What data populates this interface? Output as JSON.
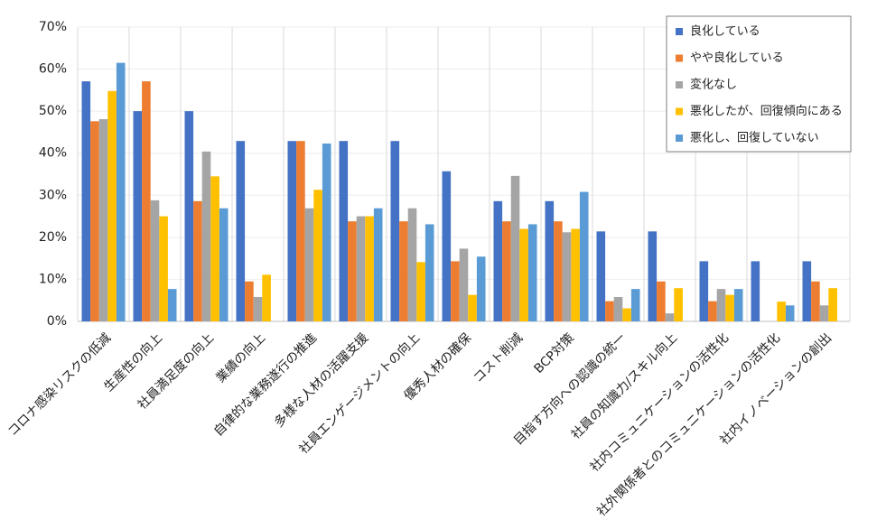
{
  "chart_data": {
    "type": "bar",
    "categories": [
      "コロナ感染リスクの低減",
      "生産性の向上",
      "社員満足度の向上",
      "業績の向上",
      "自律的な業務遂行の推進",
      "多様な人材の活躍支援",
      "社員エンゲージメントの向上",
      "優秀人材の確保",
      "コスト削減",
      "BCP対策",
      "目指す方向への認識の統一",
      "社員の知識力/スキル向上",
      "社内コミュニケーションの活性化",
      "社外関係者とのコミュニケーションの活性化",
      "社内イノベーションの創出"
    ],
    "series": [
      {
        "name": "良化している",
        "color": "#4472c4",
        "values": [
          57.1,
          50,
          50,
          42.9,
          42.9,
          42.9,
          42.9,
          35.7,
          28.6,
          28.6,
          21.4,
          21.4,
          14.3,
          14.3,
          14.3
        ]
      },
      {
        "name": "やや良化している",
        "color": "#ed7d31",
        "values": [
          47.6,
          57.1,
          28.6,
          9.5,
          42.9,
          23.8,
          23.8,
          14.3,
          23.8,
          23.8,
          4.8,
          9.5,
          4.8,
          0,
          9.5
        ]
      },
      {
        "name": "変化なし",
        "color": "#a5a5a5",
        "values": [
          48.1,
          28.8,
          40.4,
          5.8,
          26.9,
          25,
          26.9,
          17.3,
          34.6,
          21.2,
          5.8,
          1.9,
          7.7,
          0,
          3.8
        ]
      },
      {
        "name": "悪化したが、回復傾向にある",
        "color": "#ffc000",
        "values": [
          54.8,
          25,
          34.5,
          11.1,
          31.3,
          25,
          14.1,
          6.3,
          22,
          22,
          3.1,
          7.9,
          6.3,
          4.7,
          7.9
        ]
      },
      {
        "name": "悪化し、回復していない",
        "color": "#5b9bd5",
        "values": [
          61.5,
          7.7,
          26.9,
          0,
          42.3,
          26.9,
          23.1,
          15.4,
          23.1,
          30.8,
          7.7,
          0,
          7.7,
          3.8,
          0
        ]
      }
    ],
    "ylim": [
      0,
      70
    ],
    "yticks": [
      {
        "value": 0,
        "label": "0%"
      },
      {
        "value": 10,
        "label": "10%"
      },
      {
        "value": 20,
        "label": "20%"
      },
      {
        "value": 30,
        "label": "30%"
      },
      {
        "value": 40,
        "label": "40%"
      },
      {
        "value": 50,
        "label": "50%"
      },
      {
        "value": 60,
        "label": "60%"
      },
      {
        "value": 70,
        "label": "70%"
      }
    ],
    "grid": true,
    "legend": "top-right"
  }
}
